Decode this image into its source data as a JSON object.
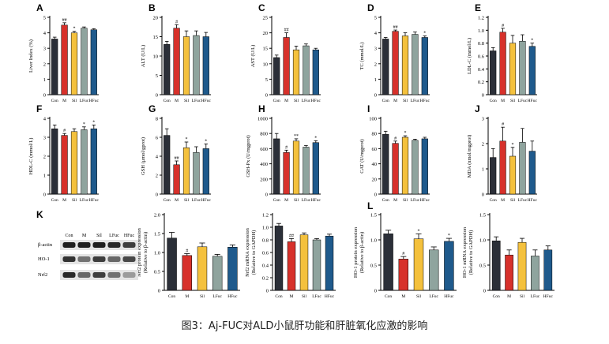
{
  "caption": "图3：Aj-FUC对ALD小鼠肝功能和肝脏氧化应激的影响",
  "colors": {
    "Con": "#2b2f38",
    "M": "#d7312b",
    "Sil": "#f4c13d",
    "LFuc": "#8fa49e",
    "HFuc": "#1f5a8c"
  },
  "categories": [
    "Con",
    "M",
    "Sil",
    "LFuc",
    "HFuc"
  ],
  "western_blot": {
    "panel": "K",
    "lanes": [
      "Con",
      "M",
      "Sil",
      "LFuc",
      "HFuc"
    ],
    "rows": [
      "β-actin",
      "HO-1",
      "Nrf2"
    ]
  },
  "chart_data": [
    {
      "panel": "A",
      "type": "bar",
      "ylabel": "Liver Index (%)",
      "ylim": [
        0,
        5
      ],
      "yticks": [
        0,
        1,
        2,
        3,
        4,
        5
      ],
      "values": [
        3.6,
        4.5,
        4.0,
        4.3,
        4.2
      ],
      "errors": [
        0.12,
        0.15,
        0.1,
        0.08,
        0.07
      ],
      "marks": [
        "",
        "##",
        "*",
        "",
        ""
      ]
    },
    {
      "panel": "B",
      "type": "bar",
      "ylabel": "ALT (U/L)",
      "ylim": [
        0,
        20
      ],
      "yticks": [
        0,
        5,
        10,
        15,
        20
      ],
      "values": [
        13,
        17.2,
        15,
        15.3,
        15
      ],
      "errors": [
        0.8,
        0.9,
        1.5,
        1.2,
        1.1
      ],
      "marks": [
        "",
        "#",
        "",
        "",
        ""
      ]
    },
    {
      "panel": "C",
      "type": "bar",
      "ylabel": "AST (U/L)",
      "ylim": [
        0,
        25
      ],
      "yticks": [
        0,
        5,
        10,
        15,
        20,
        25
      ],
      "values": [
        12,
        18.5,
        14.5,
        15.8,
        14.5
      ],
      "errors": [
        0.8,
        1.5,
        1.2,
        0.6,
        0.5
      ],
      "marks": [
        "",
        "##",
        "",
        "",
        ""
      ]
    },
    {
      "panel": "D",
      "type": "bar",
      "ylabel": "TC (mmol/L)",
      "ylim": [
        0,
        5
      ],
      "yticks": [
        0,
        1,
        2,
        3,
        4,
        5
      ],
      "values": [
        3.6,
        4.1,
        3.8,
        3.9,
        3.7
      ],
      "errors": [
        0.1,
        0.08,
        0.2,
        0.15,
        0.1
      ],
      "marks": [
        "",
        "##",
        "",
        "",
        "*"
      ]
    },
    {
      "panel": "E",
      "type": "bar",
      "ylabel": "LDL-C (mmol/L)",
      "ylim": [
        0,
        1.2
      ],
      "yticks": [
        0,
        0.2,
        0.4,
        0.6,
        0.8,
        1.0,
        1.2
      ],
      "ytick_labels": [
        "0",
        "0.2",
        "0.4",
        "0.6",
        "0.8",
        "1.0",
        "1.2"
      ],
      "values": [
        0.68,
        0.97,
        0.8,
        0.83,
        0.75
      ],
      "errors": [
        0.05,
        0.06,
        0.12,
        0.1,
        0.05
      ],
      "marks": [
        "",
        "#",
        "",
        "",
        "*"
      ]
    },
    {
      "panel": "F",
      "type": "bar",
      "ylabel": "HDL-C (mmol/L)",
      "ylim": [
        0,
        4
      ],
      "yticks": [
        0,
        1,
        2,
        3,
        4
      ],
      "values": [
        3.45,
        3.1,
        3.3,
        3.4,
        3.45
      ],
      "errors": [
        0.2,
        0.1,
        0.15,
        0.15,
        0.2
      ],
      "marks": [
        "",
        "#",
        "",
        "*",
        "*"
      ]
    },
    {
      "panel": "G",
      "type": "bar",
      "ylabel": "GSH (μmol/gprot)",
      "ylim": [
        0,
        8
      ],
      "yticks": [
        0,
        2,
        4,
        6,
        8
      ],
      "values": [
        6.2,
        3.1,
        4.9,
        4.4,
        4.8
      ],
      "errors": [
        0.7,
        0.4,
        0.6,
        0.6,
        0.5
      ],
      "marks": [
        "",
        "##",
        "*",
        "",
        "*"
      ]
    },
    {
      "panel": "H",
      "type": "bar",
      "ylabel": "GSH-Px (U/mgprot)",
      "ylim": [
        0,
        1000
      ],
      "yticks": [
        0,
        200,
        400,
        600,
        800,
        1000
      ],
      "values": [
        730,
        550,
        700,
        620,
        680
      ],
      "errors": [
        70,
        30,
        30,
        20,
        25
      ],
      "marks": [
        "",
        "#",
        "**",
        "",
        "*"
      ]
    },
    {
      "panel": "I",
      "type": "bar",
      "ylabel": "CAT (U/mgprot)",
      "ylim": [
        0,
        100
      ],
      "yticks": [
        0,
        20,
        40,
        60,
        80,
        100
      ],
      "values": [
        79,
        67,
        75,
        71,
        73
      ],
      "errors": [
        4,
        3,
        2,
        1.5,
        2
      ],
      "marks": [
        "",
        "#",
        "*",
        "",
        ""
      ]
    },
    {
      "panel": "J",
      "type": "bar",
      "ylabel": "MDA (nmol/mgprot)",
      "ylim": [
        0,
        3
      ],
      "yticks": [
        0,
        1,
        2,
        3
      ],
      "values": [
        1.45,
        2.1,
        1.5,
        2.05,
        1.7
      ],
      "errors": [
        0.35,
        0.55,
        0.35,
        0.55,
        0.4
      ],
      "marks": [
        "",
        "#",
        "*",
        "",
        ""
      ]
    },
    {
      "panel": "",
      "type": "bar",
      "ylabel": "Nrf2 protein expression (Relative to β-actin)",
      "ylim": [
        0,
        2.0
      ],
      "yticks": [
        0,
        0.5,
        1.0,
        1.5,
        2.0
      ],
      "ytick_labels": [
        "0",
        "0.5",
        "1.0",
        "1.5",
        "2.0"
      ],
      "values": [
        1.38,
        0.92,
        1.15,
        0.9,
        1.14
      ],
      "errors": [
        0.15,
        0.05,
        0.1,
        0.05,
        0.06
      ],
      "marks": [
        "",
        "#",
        "",
        "",
        ""
      ]
    },
    {
      "panel": "",
      "type": "bar",
      "ylabel": "Nrf2 mRNA expression (Relative to GAPDH)",
      "ylim": [
        0,
        1.2
      ],
      "yticks": [
        0,
        0.2,
        0.4,
        0.6,
        0.8,
        1.0,
        1.2
      ],
      "ytick_labels": [
        "0",
        "0.2",
        "0.4",
        "0.6",
        "0.8",
        "1.0",
        "1.2"
      ],
      "values": [
        1.02,
        0.77,
        0.88,
        0.8,
        0.86
      ],
      "errors": [
        0.04,
        0.05,
        0.03,
        0.02,
        0.03
      ],
      "marks": [
        "",
        "##",
        "",
        "",
        ""
      ]
    },
    {
      "panel": "L",
      "type": "bar",
      "ylabel": "HO-1 protein expression (Relative to β-actin)",
      "ylim": [
        0,
        1.5
      ],
      "yticks": [
        0,
        0.5,
        1.0,
        1.5
      ],
      "ytick_labels": [
        "0",
        "0.5",
        "1.0",
        "1.5"
      ],
      "values": [
        1.12,
        0.62,
        1.02,
        0.8,
        0.97
      ],
      "errors": [
        0.07,
        0.05,
        0.1,
        0.06,
        0.06
      ],
      "marks": [
        "",
        "#",
        "*",
        "",
        "*"
      ]
    },
    {
      "panel": "",
      "type": "bar",
      "ylabel": "HO-1 mRNA expression (Relative to GAPDH)",
      "ylim": [
        0,
        1.5
      ],
      "yticks": [
        0,
        0.5,
        1.0,
        1.5
      ],
      "ytick_labels": [
        "0",
        "0.5",
        "1.0",
        "1.5"
      ],
      "values": [
        0.98,
        0.7,
        0.95,
        0.68,
        0.8
      ],
      "errors": [
        0.08,
        0.1,
        0.08,
        0.12,
        0.08
      ],
      "marks": [
        "",
        "",
        "",
        "",
        ""
      ]
    }
  ]
}
